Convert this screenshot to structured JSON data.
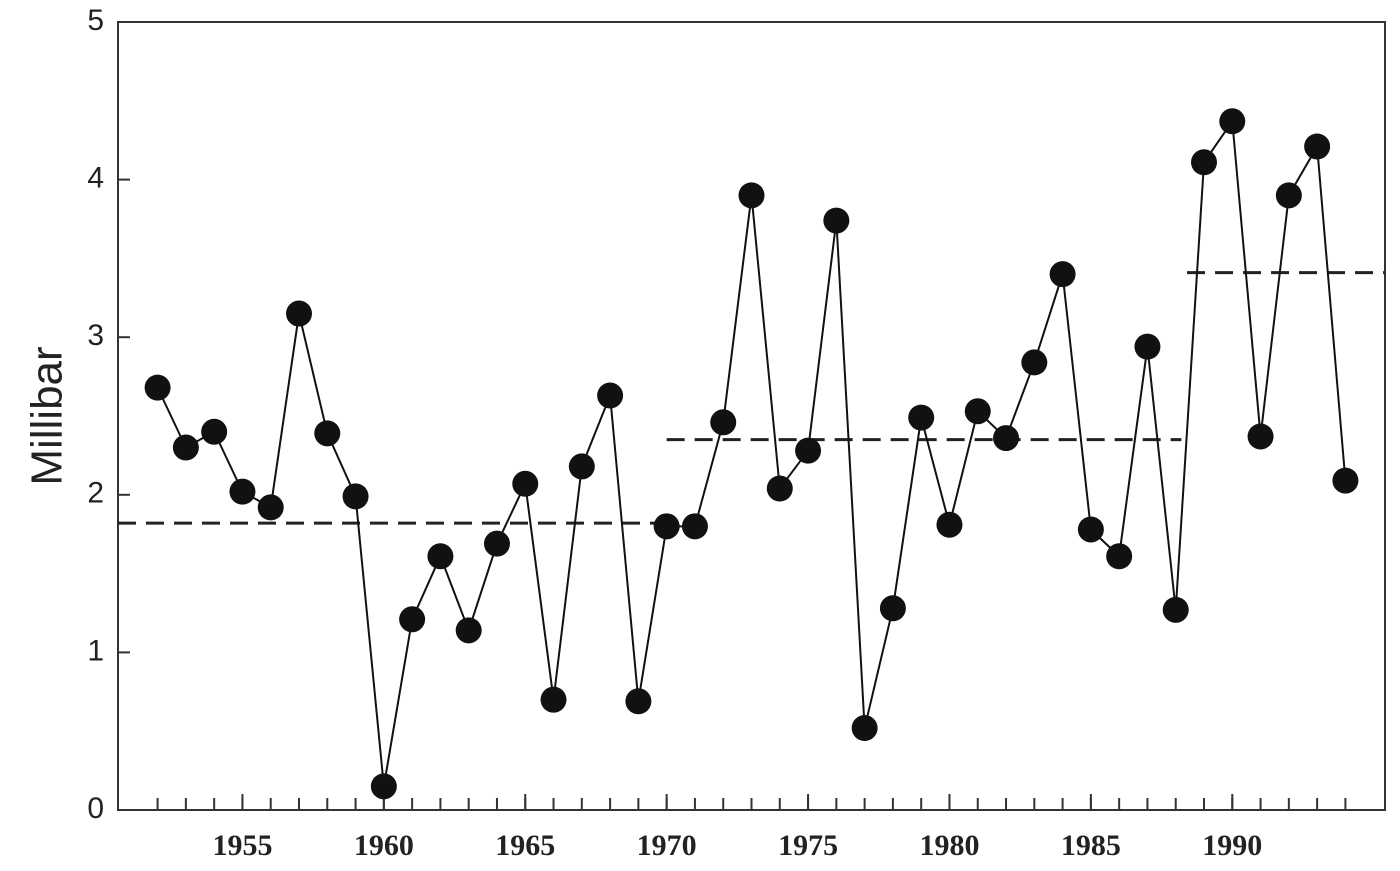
{
  "chart_data": {
    "type": "line",
    "y_label": "Millibar",
    "x": [
      1952,
      1953,
      1954,
      1955,
      1956,
      1957,
      1958,
      1959,
      1960,
      1961,
      1962,
      1963,
      1964,
      1965,
      1966,
      1967,
      1968,
      1969,
      1970,
      1971,
      1972,
      1973,
      1974,
      1975,
      1976,
      1977,
      1978,
      1979,
      1980,
      1981,
      1982,
      1983,
      1984,
      1985,
      1986,
      1987,
      1988,
      1989,
      1990,
      1991,
      1992,
      1993,
      1994
    ],
    "series": [
      {
        "color": "#111111",
        "values": [
          2.68,
          2.3,
          2.4,
          2.02,
          1.92,
          3.15,
          2.39,
          1.99,
          0.15,
          1.21,
          1.61,
          1.14,
          1.69,
          2.07,
          0.7,
          2.18,
          2.63,
          0.69,
          1.8,
          1.8,
          2.46,
          3.9,
          2.04,
          2.28,
          3.74,
          0.52,
          1.28,
          2.49,
          1.81,
          2.53,
          2.36,
          2.84,
          3.4,
          1.78,
          1.61,
          2.94,
          1.27,
          4.11,
          4.37,
          2.37,
          3.9,
          4.21,
          2.09
        ]
      }
    ],
    "reference_lines": [
      {
        "x0": 1950.6,
        "x1": 1970,
        "value": 1.82
      },
      {
        "x0": 1970,
        "x1": 1988.2,
        "value": 2.35
      },
      {
        "x0": 1988.4,
        "x1": 1995.4,
        "value": 3.41
      }
    ],
    "xlim": [
      1950.6,
      1995.4
    ],
    "xticks": [
      1955,
      1960,
      1965,
      1970,
      1975,
      1980,
      1985,
      1990
    ],
    "ylim": [
      0,
      5
    ],
    "yticks": [
      0,
      1,
      2,
      3,
      4,
      5
    ]
  }
}
